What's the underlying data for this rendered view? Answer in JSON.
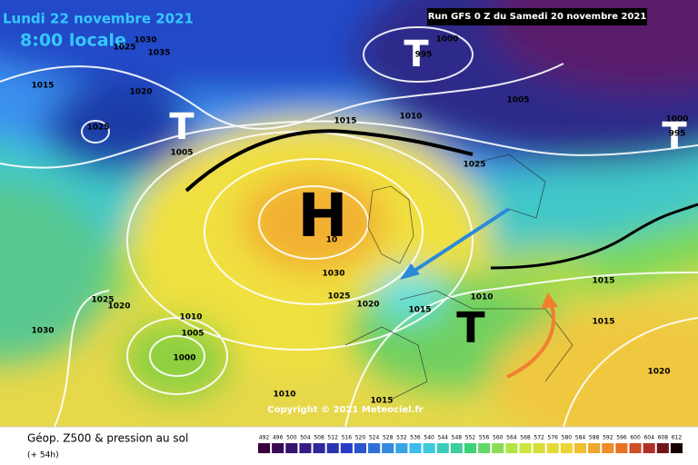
{
  "header": {
    "date": "Lundi 22 novembre 2021",
    "time": "8:00 locale",
    "run": "Run GFS 0 Z du Samedi 20 novembre 2021"
  },
  "systems": [
    "H",
    "T",
    "T",
    "T",
    "T"
  ],
  "isobar_labels": [
    "1030",
    "1035",
    "1025",
    "1015",
    "1020",
    "1025",
    "1005",
    "1015",
    "1010",
    "1000",
    "995",
    "1005",
    "1000",
    "995",
    "1025",
    "1030",
    "1025",
    "1020",
    "1015",
    "1010",
    "1015",
    "1015",
    "1020",
    "1025",
    "1020",
    "1030",
    "1010",
    "1005",
    "1000",
    "1010",
    "1015",
    "10"
  ],
  "copyright": "Copyright © 2021 Meteociel.fr",
  "legend": {
    "title": "Géop. Z500 & pression au sol",
    "subtitle": "(+ 54h)",
    "scale": [
      492,
      496,
      500,
      504,
      508,
      512,
      516,
      520,
      524,
      528,
      532,
      536,
      540,
      544,
      548,
      552,
      556,
      560,
      564,
      568,
      572,
      576,
      580,
      584,
      588,
      592,
      596,
      600,
      604,
      608,
      612
    ]
  }
}
